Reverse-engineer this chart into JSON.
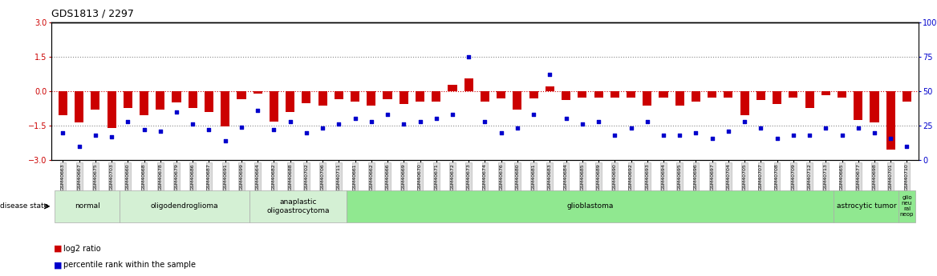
{
  "title": "GDS1813 / 2297",
  "samples": [
    "GSM40663",
    "GSM40667",
    "GSM40675",
    "GSM40703",
    "GSM40660",
    "GSM40668",
    "GSM40678",
    "GSM40679",
    "GSM40686",
    "GSM40687",
    "GSM40691",
    "GSM40699",
    "GSM40664",
    "GSM40682",
    "GSM40688",
    "GSM40702",
    "GSM40706",
    "GSM40711",
    "GSM40661",
    "GSM40662",
    "GSM40666",
    "GSM40669",
    "GSM40670",
    "GSM40671",
    "GSM40672",
    "GSM40673",
    "GSM40674",
    "GSM40676",
    "GSM40680",
    "GSM40681",
    "GSM40683",
    "GSM40684",
    "GSM40685",
    "GSM40689",
    "GSM40690",
    "GSM40692",
    "GSM40693",
    "GSM40694",
    "GSM40695",
    "GSM40696",
    "GSM40697",
    "GSM40704",
    "GSM40705",
    "GSM40707",
    "GSM40708",
    "GSM40709",
    "GSM40712",
    "GSM40713",
    "GSM40665",
    "GSM40677",
    "GSM40698",
    "GSM40701",
    "GSM40710"
  ],
  "log2_ratio": [
    -1.05,
    -1.35,
    -0.82,
    -1.62,
    -0.72,
    -1.05,
    -0.82,
    -0.5,
    -0.72,
    -0.92,
    -1.52,
    -0.35,
    -0.12,
    -1.32,
    -0.92,
    -0.52,
    -0.62,
    -0.35,
    -0.45,
    -0.62,
    -0.35,
    -0.55,
    -0.45,
    -0.45,
    0.28,
    0.55,
    -0.45,
    -0.32,
    -0.82,
    -0.32,
    0.22,
    -0.38,
    -0.28,
    -0.28,
    -0.28,
    -0.28,
    -0.62,
    -0.28,
    -0.62,
    -0.45,
    -0.28,
    -0.28,
    -1.05,
    -0.38,
    -0.55,
    -0.28,
    -0.75,
    -0.18,
    -0.28,
    -1.25,
    -1.35,
    -2.55,
    -0.45
  ],
  "percentile_rank": [
    20,
    10,
    18,
    17,
    28,
    22,
    21,
    35,
    26,
    22,
    14,
    24,
    36,
    22,
    28,
    20,
    23,
    26,
    30,
    28,
    33,
    26,
    28,
    30,
    33,
    75,
    28,
    20,
    23,
    33,
    62,
    30,
    26,
    28,
    18,
    23,
    28,
    18,
    18,
    20,
    16,
    21,
    28,
    23,
    16,
    18,
    18,
    23,
    18,
    23,
    20,
    16,
    10
  ],
  "disease_groups": [
    {
      "label": "normal",
      "start": 0,
      "end": 4,
      "color": "#d4f0d4"
    },
    {
      "label": "oligodendroglioma",
      "start": 4,
      "end": 12,
      "color": "#d4f0d4"
    },
    {
      "label": "anaplastic\noligoastrocytoma",
      "start": 12,
      "end": 18,
      "color": "#d4f0d4"
    },
    {
      "label": "glioblastoma",
      "start": 18,
      "end": 48,
      "color": "#90e890"
    },
    {
      "label": "astrocytic tumor",
      "start": 48,
      "end": 52,
      "color": "#90e890"
    },
    {
      "label": "glio\nneu\nral\nneop",
      "start": 52,
      "end": 53,
      "color": "#90e890"
    }
  ],
  "ylim_left": [
    -3,
    3
  ],
  "ylim_right": [
    0,
    100
  ],
  "yticks_left": [
    -3,
    -1.5,
    0,
    1.5,
    3
  ],
  "yticks_right": [
    0,
    25,
    50,
    75,
    100
  ],
  "bar_color": "#cc0000",
  "dot_color": "#0000cc",
  "background_color": "#ffffff"
}
